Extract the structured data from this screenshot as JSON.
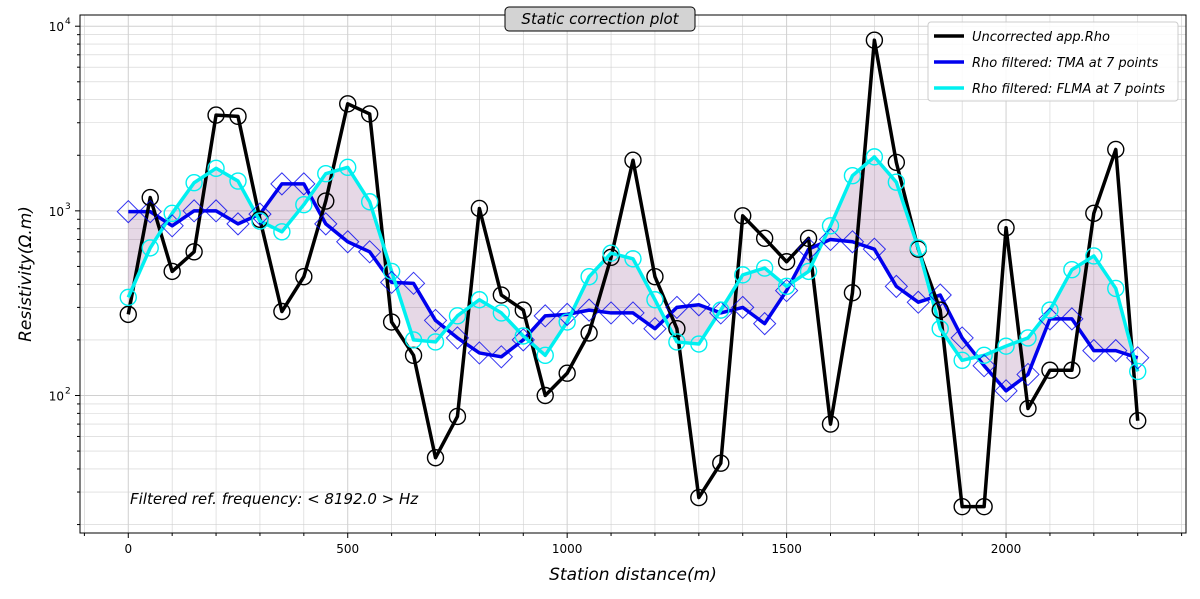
{
  "chart_data": {
    "type": "line",
    "title": "Static correction plot",
    "xlabel": "Station distance(m)",
    "ylabel": "Resistivity(Ω.m)",
    "xlim": [
      -110,
      2410
    ],
    "ylim": [
      18,
      11500
    ],
    "yscale": "log",
    "grid": true,
    "legend_position": "top-right",
    "x_ticks": [
      0,
      500,
      1000,
      1500,
      2000
    ],
    "x_tick_labels": [
      "0",
      "500",
      "1000",
      "1500",
      "2000"
    ],
    "y_ticks": [
      100,
      1000,
      10000
    ],
    "y_tick_labels": [
      "10",
      "10",
      "10"
    ],
    "y_tick_exponents": [
      "2",
      "3",
      "4"
    ],
    "annotation": "Filtered ref. frequency: < 8192.0 > Hz",
    "x": [
      0,
      50,
      100,
      150,
      200,
      250,
      300,
      350,
      400,
      450,
      500,
      550,
      600,
      650,
      700,
      750,
      800,
      850,
      900,
      950,
      1000,
      1050,
      1100,
      1150,
      1200,
      1250,
      1300,
      1350,
      1400,
      1450,
      1500,
      1550,
      1600,
      1650,
      1700,
      1750,
      1800,
      1850,
      1900,
      1950,
      2000,
      2050,
      2100,
      2150,
      2200,
      2250,
      2300
    ],
    "series": [
      {
        "name": "Uncorrected app.Rho",
        "color": "#000000",
        "marker": "circle",
        "values": [
          275,
          1180,
          470,
          600,
          3300,
          3250,
          900,
          285,
          440,
          1130,
          3800,
          3350,
          250,
          165,
          46,
          77,
          1030,
          350,
          290,
          100,
          132,
          218,
          560,
          1880,
          440,
          230,
          28,
          43,
          940,
          710,
          530,
          710,
          70,
          360,
          8400,
          1830,
          620,
          290,
          25,
          25,
          810,
          85,
          137,
          137,
          970,
          2150,
          73
        ]
      },
      {
        "name": "Rho filtered: TMA at 7 points",
        "color": "#0000ee",
        "marker": "diamond",
        "values": [
          990,
          990,
          830,
          1000,
          1000,
          850,
          960,
          1400,
          1400,
          850,
          680,
          600,
          410,
          405,
          255,
          205,
          170,
          162,
          200,
          270,
          275,
          290,
          280,
          280,
          230,
          300,
          310,
          280,
          300,
          245,
          370,
          620,
          700,
          680,
          620,
          390,
          320,
          350,
          205,
          145,
          106,
          130,
          260,
          260,
          175,
          175,
          160
        ]
      },
      {
        "name": "Rho filtered: FLMA at 7 points",
        "color": "#00f0f0",
        "marker": "circle",
        "values": [
          340,
          630,
          970,
          1420,
          1700,
          1450,
          880,
          770,
          1080,
          1590,
          1720,
          1120,
          470,
          200,
          195,
          270,
          330,
          280,
          210,
          165,
          250,
          440,
          590,
          550,
          330,
          195,
          190,
          290,
          450,
          490,
          390,
          470,
          830,
          1550,
          1960,
          1430,
          630,
          230,
          155,
          165,
          185,
          205,
          290,
          480,
          570,
          380,
          135
        ]
      }
    ]
  }
}
